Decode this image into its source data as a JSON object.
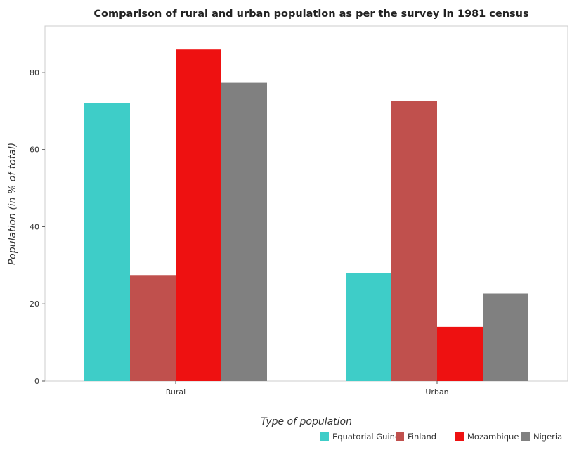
{
  "chart_data": {
    "type": "bar",
    "title": "Comparison of rural and urban population as per the survey in 1981 census",
    "xlabel": "Type of population",
    "ylabel": "Population (in % of total)",
    "categories": [
      "Rural",
      "Urban"
    ],
    "ylim": [
      0,
      92
    ],
    "yticks": [
      0,
      20,
      40,
      60,
      80
    ],
    "grid": false,
    "legend_position": "bottom-right",
    "series": [
      {
        "name": "Equatorial Guinea",
        "color": "#3ecdc8",
        "values": [
          72.03,
          27.97
        ]
      },
      {
        "name": "Finland",
        "color": "#c0504d",
        "values": [
          27.46,
          72.54
        ]
      },
      {
        "name": "Mozambique",
        "color": "#ee1111",
        "values": [
          85.95,
          14.05
        ]
      },
      {
        "name": "Nigeria",
        "color": "#808080",
        "values": [
          77.32,
          22.68
        ]
      }
    ]
  }
}
